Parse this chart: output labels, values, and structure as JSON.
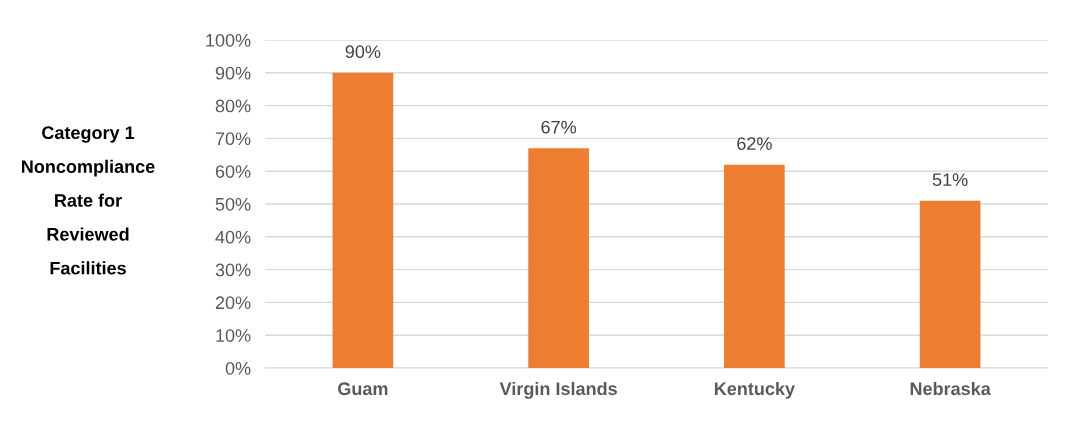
{
  "chart_data": {
    "type": "bar",
    "ylabel": "Category 1\nNoncompliance\nRate for\nReviewed\nFacilities",
    "categories": [
      "Guam",
      "Virgin Islands",
      "Kentucky",
      "Nebraska"
    ],
    "values": [
      90,
      67,
      62,
      51
    ],
    "value_labels": [
      "90%",
      "67%",
      "62%",
      "51%"
    ],
    "color": "#ed7d31",
    "ylim": [
      0,
      100
    ],
    "yticks": [
      {
        "value": 0,
        "label": "0%"
      },
      {
        "value": 10,
        "label": "10%"
      },
      {
        "value": 20,
        "label": "20%"
      },
      {
        "value": 30,
        "label": "30%"
      },
      {
        "value": 40,
        "label": "40%"
      },
      {
        "value": 50,
        "label": "50%"
      },
      {
        "value": 60,
        "label": "60%"
      },
      {
        "value": 70,
        "label": "70%"
      },
      {
        "value": 80,
        "label": "80%"
      },
      {
        "value": 90,
        "label": "90%"
      },
      {
        "value": 100,
        "label": "100%"
      }
    ],
    "grid": "y"
  }
}
